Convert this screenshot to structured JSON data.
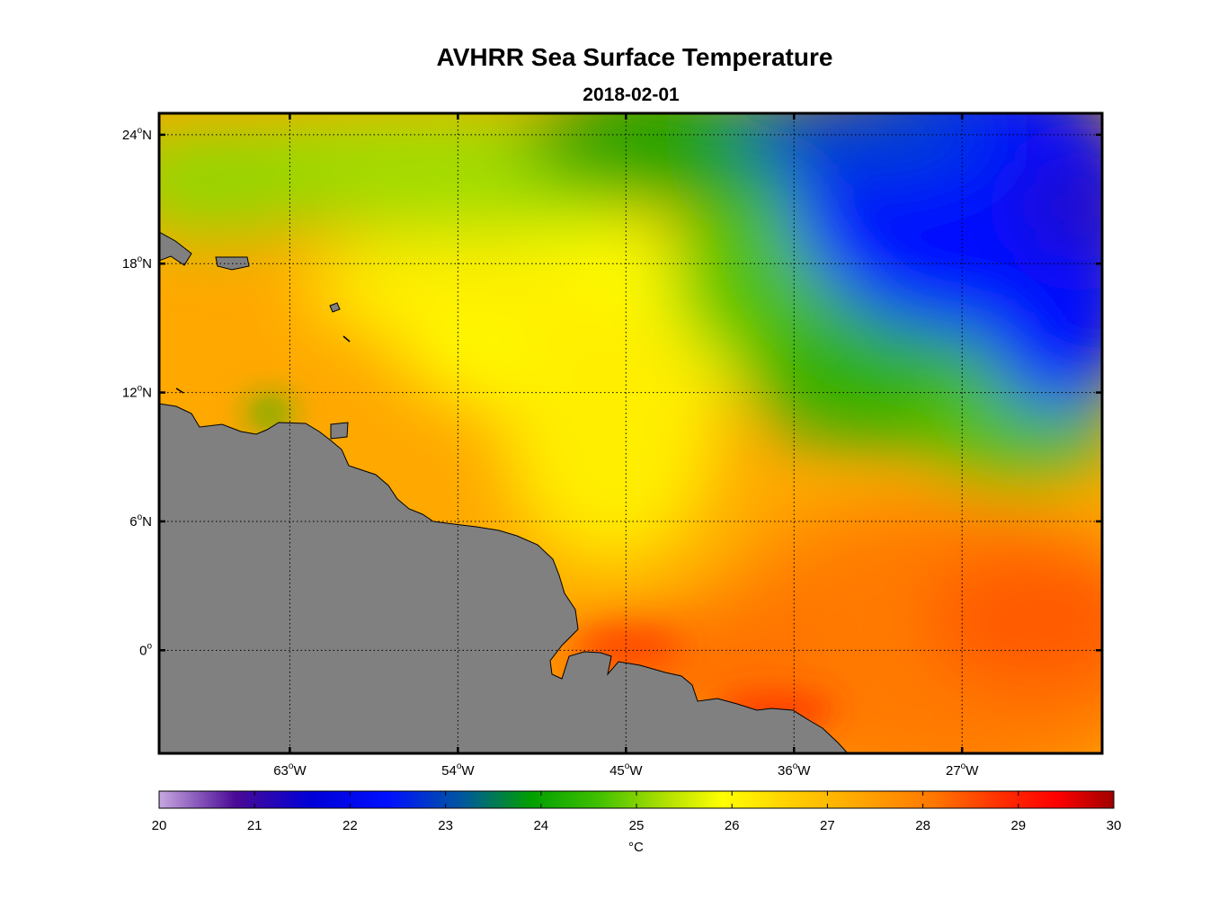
{
  "title": "AVHRR Sea Surface Temperature",
  "subtitle": "2018-02-01",
  "map": {
    "lon_range": [
      -70,
      -19.5
    ],
    "lat_range": [
      -4.8,
      25
    ],
    "lat_ticks": [
      {
        "value": 24,
        "deg": "24",
        "hem": "N"
      },
      {
        "value": 18,
        "deg": "18",
        "hem": "N"
      },
      {
        "value": 12,
        "deg": "12",
        "hem": "N"
      },
      {
        "value": 6,
        "deg": "6",
        "hem": "N"
      },
      {
        "value": 0,
        "deg": "0",
        "hem": ""
      }
    ],
    "lon_ticks": [
      {
        "value": -63,
        "deg": "63",
        "hem": "W"
      },
      {
        "value": -54,
        "deg": "54",
        "hem": "W"
      },
      {
        "value": -45,
        "deg": "45",
        "hem": "W"
      },
      {
        "value": -36,
        "deg": "36",
        "hem": "W"
      },
      {
        "value": -27,
        "deg": "27",
        "hem": "W"
      }
    ],
    "land_color": "#808080",
    "gridlines": true
  },
  "colorbar": {
    "min": 20,
    "max": 30,
    "ticks": [
      "20",
      "21",
      "22",
      "23",
      "24",
      "25",
      "26",
      "27",
      "28",
      "29",
      "30"
    ],
    "unit": "°C",
    "stops": [
      {
        "value": 20,
        "color": "#c7a8e0"
      },
      {
        "value": 20.8,
        "color": "#4a0a96"
      },
      {
        "value": 21.6,
        "color": "#0000d8"
      },
      {
        "value": 22.4,
        "color": "#0010ff"
      },
      {
        "value": 23.2,
        "color": "#005a9a"
      },
      {
        "value": 23.9,
        "color": "#00a000"
      },
      {
        "value": 24.6,
        "color": "#40c000"
      },
      {
        "value": 25.3,
        "color": "#b0e000"
      },
      {
        "value": 25.9,
        "color": "#ffff00"
      },
      {
        "value": 26.6,
        "color": "#ffd000"
      },
      {
        "value": 27.3,
        "color": "#ffa800"
      },
      {
        "value": 28.1,
        "color": "#ff7800"
      },
      {
        "value": 28.8,
        "color": "#ff3000"
      },
      {
        "value": 29.4,
        "color": "#ff0000"
      },
      {
        "value": 30,
        "color": "#a00000"
      }
    ]
  }
}
